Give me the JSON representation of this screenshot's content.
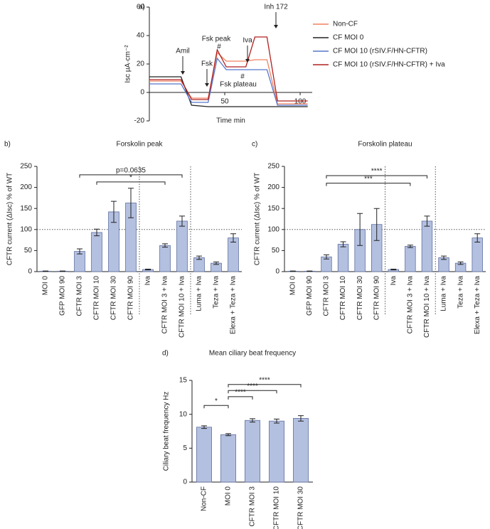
{
  "chart_data": [
    {
      "type": "line",
      "panel": "a)",
      "xlabel": "Time min",
      "ylabel": "Isc µA·cm⁻²",
      "xlim": [
        0,
        108
      ],
      "xticks": [
        50,
        100
      ],
      "ylim": [
        -20,
        60
      ],
      "yticks": [
        -20,
        0,
        20,
        40,
        60
      ],
      "x": [
        0,
        21,
        28,
        39,
        45,
        51,
        64,
        70,
        78,
        85,
        105
      ],
      "series": [
        {
          "name": "Non-CF",
          "color": "#f08060",
          "values": [
            8,
            8,
            -4,
            -4,
            28,
            22,
            22,
            23,
            23,
            -8,
            -8
          ]
        },
        {
          "name": "CF MOI 0",
          "color": "#222222",
          "values": [
            11,
            11,
            -9,
            -10,
            -10,
            -10,
            -10,
            -10,
            -10,
            -10,
            -10
          ]
        },
        {
          "name": "CF MOI 10 (rSIV.F/HN-CFTR)",
          "color": "#5577cc",
          "values": [
            6,
            6,
            -7,
            -7,
            24,
            16,
            16,
            16,
            16,
            -9,
            -9
          ]
        },
        {
          "name": "CF MOI 10 (rSIV.F/HN-CFTR) + Iva",
          "color": "#b02020",
          "values": [
            9,
            9,
            -5,
            -5,
            30,
            18,
            18,
            39,
            39,
            -6,
            -6
          ]
        }
      ],
      "annotations": [
        "Amil",
        "Fsk",
        "Fsk peak",
        "#",
        "Iva",
        "Inh 172",
        "#",
        "Fsk plateau"
      ]
    },
    {
      "type": "bar",
      "panel": "b)",
      "title": "Forskolin peak",
      "ylabel": "CFTR current (ΔIsc) % of WT",
      "categories": [
        "MOI 0",
        "GFP MOI 90",
        "CFTR MOI 3",
        "CFTR MOI 10",
        "CFTR MOI 30",
        "CFTR MOI 90",
        "Iva",
        "CFTR MOI 3 + Iva",
        "CFTR MOI 10 + Iva",
        "Luma + Iva",
        "Teza + Iva",
        "Elexa + Teza + Iva"
      ],
      "values": [
        1,
        1,
        48,
        93,
        142,
        163,
        5,
        62,
        120,
        33,
        20,
        80
      ],
      "errors": [
        0.5,
        0.5,
        6,
        8,
        25,
        35,
        1,
        4,
        12,
        4,
        3,
        10
      ],
      "ylim": [
        0,
        250
      ],
      "yticks": [
        0,
        50,
        100,
        150,
        200,
        250
      ],
      "ref_line": 100,
      "color": "#b4c0e0",
      "brackets": [
        {
          "from": "CFTR MOI 3",
          "to": "CFTR MOI 10 + Iva",
          "y": 230,
          "label": "p=0.0635"
        },
        {
          "from": "CFTR MOI 10",
          "to": "CFTR MOI 3 + Iva",
          "y": 213,
          "label": "*"
        }
      ]
    },
    {
      "type": "bar",
      "panel": "c)",
      "title": "Forskolin plateau",
      "ylabel": "CFTR current (ΔIsc) % of WT",
      "categories": [
        "MOI 0",
        "GFP MOI 90",
        "CFTR MOI 3",
        "CFTR MOI 10",
        "CFTR MOI 30",
        "CFTR MOI 90",
        "Iva",
        "CFTR MOI 3 + Iva",
        "CFTR MOI 10 + Iva",
        "Luma + Iva",
        "Teza + Iva",
        "Elexa + Teza + Iva"
      ],
      "values": [
        1,
        1,
        35,
        65,
        100,
        112,
        5,
        60,
        120,
        33,
        20,
        80
      ],
      "errors": [
        0.5,
        0.5,
        5,
        6,
        38,
        38,
        1,
        3,
        12,
        4,
        3,
        10
      ],
      "ylim": [
        0,
        250
      ],
      "yticks": [
        0,
        50,
        100,
        150,
        200,
        250
      ],
      "ref_line": 100,
      "color": "#b4c0e0",
      "brackets": [
        {
          "from": "CFTR MOI 3",
          "to": "CFTR MOI 10 + Iva",
          "y": 228,
          "label": "****"
        },
        {
          "from": "CFTR MOI 3",
          "to": "CFTR MOI 3 + Iva",
          "y": 210,
          "label": "***"
        }
      ]
    },
    {
      "type": "bar",
      "panel": "d)",
      "title": "Mean ciliary beat frequency",
      "ylabel": "Ciliary beat frequency Hz",
      "categories": [
        "Non-CF",
        "MOI 0",
        "CFTR MOI 3",
        "CFTR MOI 10",
        "CFTR MOI 30"
      ],
      "values": [
        8.1,
        7.0,
        9.1,
        9.0,
        9.4
      ],
      "errors": [
        0.2,
        0.15,
        0.25,
        0.3,
        0.4
      ],
      "ylim": [
        0,
        15
      ],
      "yticks": [
        0,
        5,
        10,
        15
      ],
      "color": "#b4c0e0",
      "brackets": [
        {
          "from": "Non-CF",
          "to": "MOI 0",
          "y": 11.3,
          "label": "*"
        },
        {
          "from": "MOI 0",
          "to": "CFTR MOI 3",
          "y": 12.6,
          "label": "****"
        },
        {
          "from": "MOI 0",
          "to": "CFTR MOI 10",
          "y": 13.5,
          "label": "****"
        },
        {
          "from": "MOI 0",
          "to": "CFTR MOI 30",
          "y": 14.4,
          "label": "****"
        }
      ]
    }
  ]
}
